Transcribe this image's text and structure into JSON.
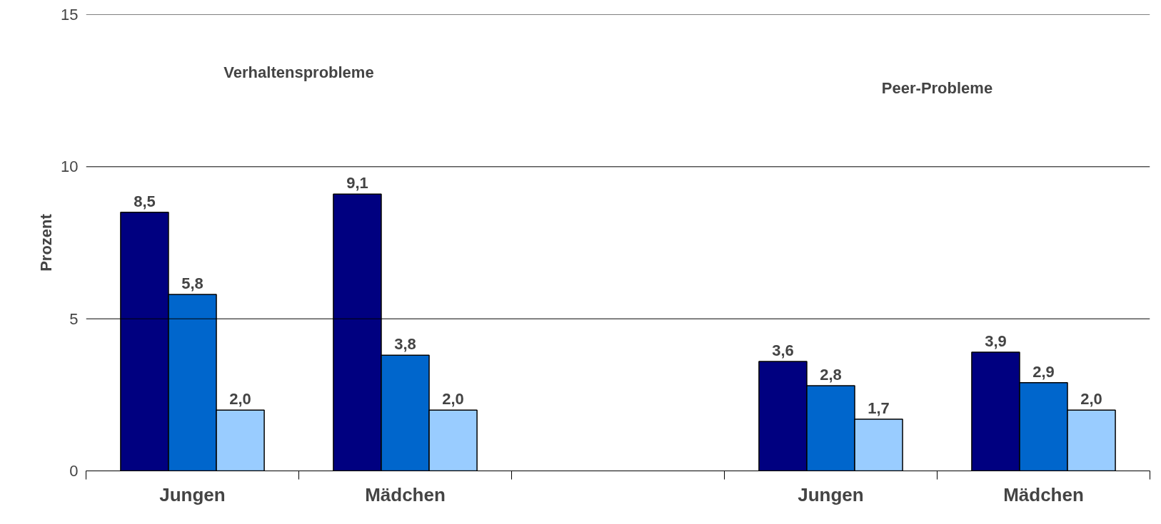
{
  "chart_data": {
    "type": "bar",
    "ylabel": "Prozent",
    "categories": [
      "Jungen",
      "Mädchen",
      null,
      "Jungen",
      "Mädchen"
    ],
    "series": [
      {
        "color": "#000080",
        "values": [
          8.5,
          9.1,
          null,
          3.6,
          3.9
        ],
        "value_labels": [
          "8,5",
          "9,1",
          null,
          "3,6",
          "3,9"
        ]
      },
      {
        "color": "#0066cc",
        "values": [
          5.8,
          3.8,
          null,
          2.8,
          2.9
        ],
        "value_labels": [
          "5,8",
          "3,8",
          null,
          "2,8",
          "2,9"
        ]
      },
      {
        "color": "#99ccff",
        "values": [
          2.0,
          2.0,
          null,
          1.7,
          2.0
        ],
        "value_labels": [
          "2,0",
          "2,0",
          null,
          "1,7",
          "2,0"
        ]
      }
    ],
    "annotations": [
      "Verhaltensprobleme",
      "Peer-Probleme"
    ],
    "ylim": [
      0,
      15
    ],
    "yticks": [
      0,
      5,
      10,
      15
    ],
    "grid": "y"
  }
}
